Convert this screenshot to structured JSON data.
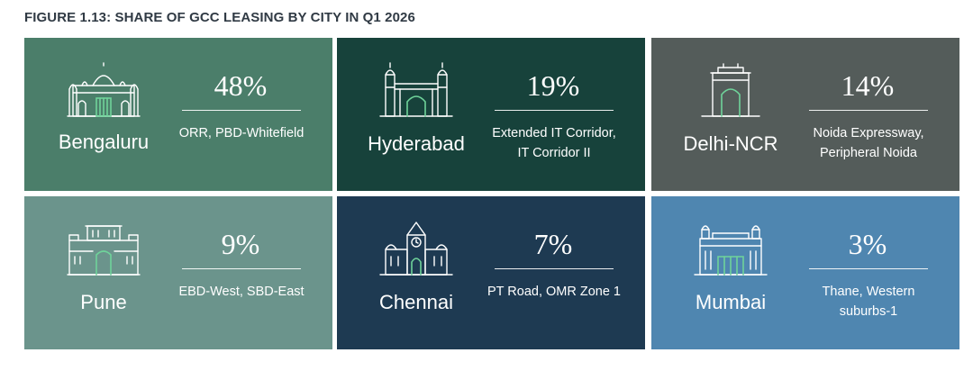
{
  "chart_data": {
    "type": "table",
    "title": "FIGURE 1.13: SHARE OF GCC LEASING BY CITY IN Q1 2026",
    "tiles": [
      {
        "city": "Bengaluru",
        "share": "48%",
        "value": 48,
        "areas": [
          "ORR, PBD-Whitefield"
        ],
        "color": "#4b7e6a",
        "icon": "palace-icon"
      },
      {
        "city": "Hyderabad",
        "share": "19%",
        "value": 19,
        "areas": [
          "Extended IT Corridor,",
          "IT Corridor II"
        ],
        "color": "#17423b",
        "icon": "charminar-icon"
      },
      {
        "city": "Delhi-NCR",
        "share": "14%",
        "value": 14,
        "areas": [
          "Noida Expressway,",
          "Peripheral Noida"
        ],
        "color": "#545c5a",
        "icon": "india-gate-icon"
      },
      {
        "city": "Pune",
        "share": "9%",
        "value": 9,
        "areas": [
          "EBD-West, SBD-East"
        ],
        "color": "#6b948c",
        "icon": "fort-icon"
      },
      {
        "city": "Chennai",
        "share": "7%",
        "value": 7,
        "areas": [
          "PT Road, OMR Zone 1"
        ],
        "color": "#1e3a52",
        "icon": "clock-tower-icon"
      },
      {
        "city": "Mumbai",
        "share": "3%",
        "value": 3,
        "areas": [
          "Thane, Western",
          "suburbs-1"
        ],
        "color": "#4f86b0",
        "icon": "gateway-of-india-icon"
      }
    ],
    "accent_color": "#6fd39a"
  }
}
